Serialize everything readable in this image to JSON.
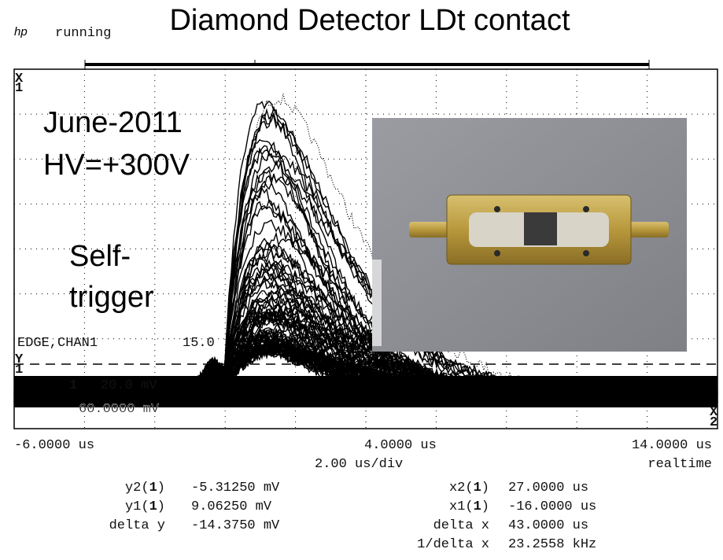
{
  "header": {
    "title": "Diamond Detector LDt contact",
    "logo": "hp",
    "status": "running"
  },
  "annotations": {
    "date": "June-2011",
    "voltage": "HV=+300V",
    "trigger_lines": [
      "Self-",
      "trigger"
    ]
  },
  "scope": {
    "trigger_label": "EDGE,CHAN1",
    "trigger_level": "15.0",
    "ch1_marker": "1",
    "ch1_offset": "20.0 mV",
    "ch1_ref": "60.0000 mV",
    "y_marker": "Y",
    "x_marker": "X",
    "x_sub": "1",
    "y_sub": "1",
    "x2_sub": "2"
  },
  "time_axis": {
    "left": "-6.0000 us",
    "center": "4.0000 us",
    "right": "14.0000 us",
    "scale": "2.00 us/div",
    "mode": "realtime"
  },
  "measurements": [
    {
      "left_label": [
        "y2(",
        "1",
        ")"
      ],
      "left_value": "-5.31250 mV",
      "right_label": [
        "x2(",
        "1",
        ")"
      ],
      "right_value": "27.0000 us"
    },
    {
      "left_label": [
        "y1(",
        "1",
        ")"
      ],
      "left_value": "9.06250 mV",
      "right_label": [
        "x1(",
        "1",
        ")"
      ],
      "right_value": "-16.0000 us"
    },
    {
      "left_label": [
        "delta y"
      ],
      "left_value": "-14.3750 mV",
      "right_label": [
        "delta x"
      ],
      "right_value": "43.0000 us"
    },
    {
      "left_label": [],
      "left_value": "",
      "right_label": [
        "1/delta x"
      ],
      "right_value": "23.2558 kHz"
    }
  ]
}
